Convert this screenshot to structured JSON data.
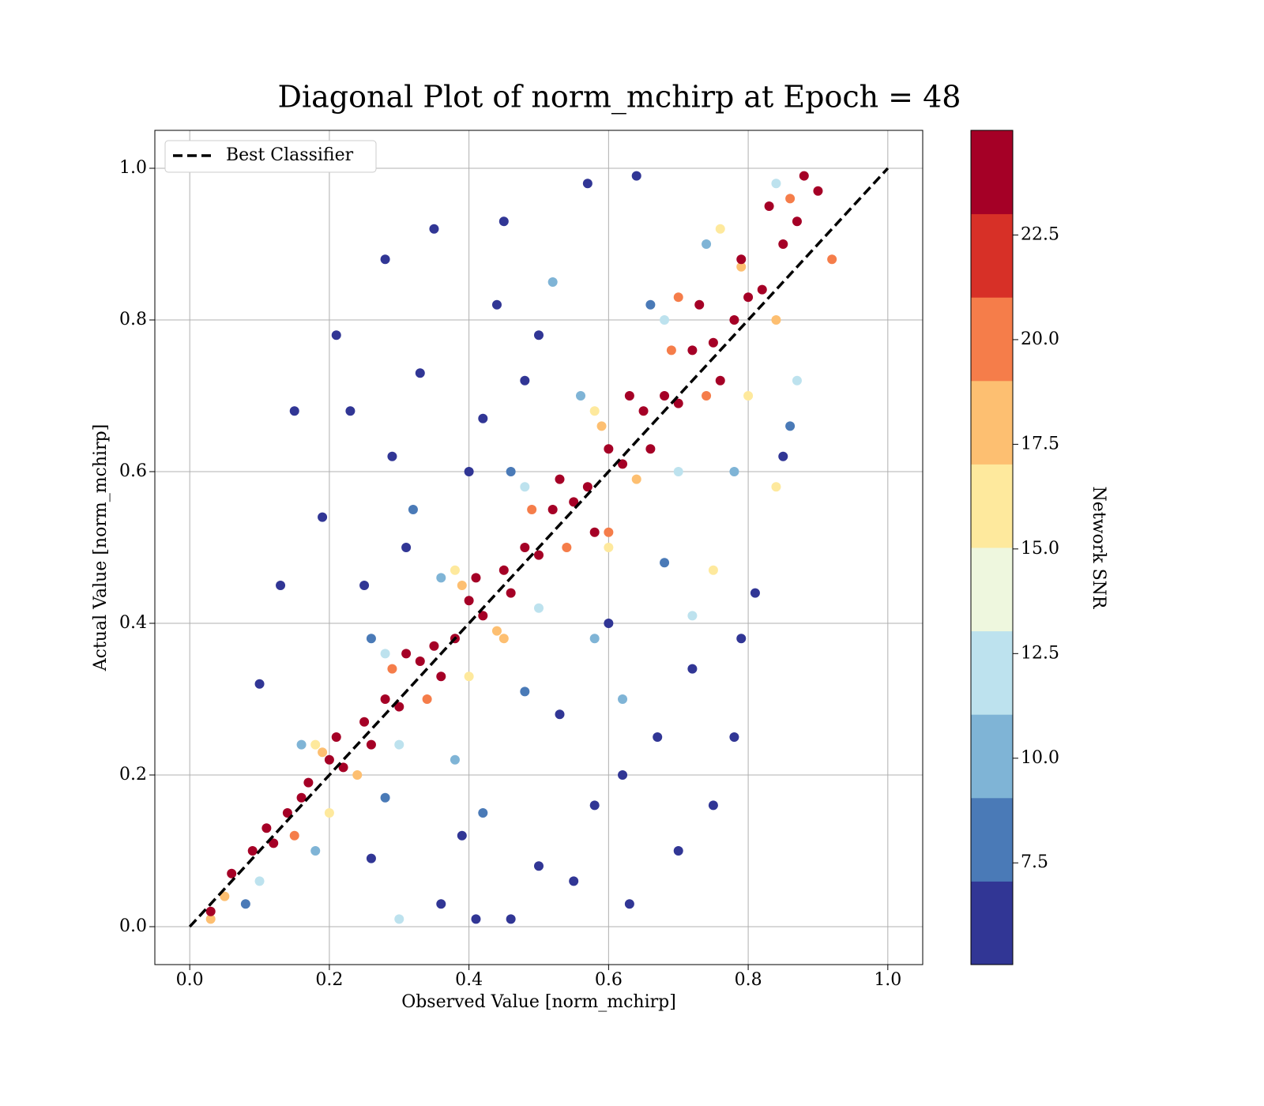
{
  "chart_data": {
    "type": "scatter",
    "title": "Diagonal Plot of norm_mchirp at Epoch = 48",
    "xlabel": "Observed Value [norm_mchirp]",
    "ylabel": "Actual Value [norm_mchirp]",
    "colorbar_label": "Network SNR",
    "xlim": [
      -0.05,
      1.05
    ],
    "ylim": [
      -0.05,
      1.05
    ],
    "xticks": [
      {
        "value": 0,
        "label": "0.0"
      },
      0.2,
      0.4,
      0.6,
      0.8,
      {
        "value": 1,
        "label": "1.0"
      }
    ],
    "yticks": [
      {
        "value": 0,
        "label": "0.0"
      },
      0.2,
      0.4,
      0.6,
      0.8,
      {
        "value": 1,
        "label": "1.0"
      }
    ],
    "grid": true,
    "legend": "upper left",
    "clim": [
      5.07,
      25
    ],
    "cticks": [
      7.5,
      {
        "value": 10,
        "label": "10.0"
      },
      12.5,
      {
        "value": 15,
        "label": "15.0"
      },
      17.5,
      {
        "value": 20,
        "label": "20.0"
      },
      22.5
    ],
    "colormap": [
      "#313695",
      "#4a7ab7",
      "#7fb4d6",
      "#bde2ee",
      "#eef7de",
      "#fee99d",
      "#fdbf71",
      "#f57d4a",
      "#d73027",
      "#a50026"
    ],
    "lines": [
      {
        "name": "Best Classifier",
        "x": [
          0,
          1
        ],
        "y": [
          0,
          1
        ],
        "color": "#000000"
      }
    ],
    "points": {
      "x": [
        0.15,
        0.21,
        0.28,
        0.35,
        0.4,
        0.45,
        0.57,
        0.64,
        0.1,
        0.19,
        0.25,
        0.33,
        0.55,
        0.46,
        0.41,
        0.63,
        0.7,
        0.75,
        0.79,
        0.81,
        0.85,
        0.62,
        0.5,
        0.36,
        0.23,
        0.29,
        0.44,
        0.53,
        0.67,
        0.72,
        0.39,
        0.58,
        0.13,
        0.31,
        0.48,
        0.6,
        0.26,
        0.78,
        0.5,
        0.42,
        0.08,
        0.18,
        0.28,
        0.38,
        0.48,
        0.58,
        0.68,
        0.78,
        0.86,
        0.16,
        0.26,
        0.36,
        0.46,
        0.56,
        0.66,
        0.74,
        0.42,
        0.62,
        0.32,
        0.52,
        0.1,
        0.2,
        0.3,
        0.4,
        0.5,
        0.6,
        0.7,
        0.8,
        0.87,
        0.18,
        0.28,
        0.38,
        0.48,
        0.58,
        0.68,
        0.76,
        0.84,
        0.75,
        0.3,
        0.84,
        0.72,
        0.05,
        0.15,
        0.24,
        0.34,
        0.44,
        0.54,
        0.64,
        0.74,
        0.84,
        0.92,
        0.19,
        0.29,
        0.39,
        0.49,
        0.59,
        0.69,
        0.79,
        0.86,
        0.03,
        0.6,
        0.45,
        0.7,
        0.03,
        0.06,
        0.09,
        0.11,
        0.14,
        0.17,
        0.2,
        0.22,
        0.25,
        0.28,
        0.3,
        0.33,
        0.35,
        0.38,
        0.4,
        0.42,
        0.45,
        0.48,
        0.5,
        0.52,
        0.55,
        0.57,
        0.6,
        0.62,
        0.65,
        0.68,
        0.7,
        0.72,
        0.75,
        0.78,
        0.8,
        0.82,
        0.85,
        0.87,
        0.9,
        0.88,
        0.83,
        0.79,
        0.76,
        0.66,
        0.58,
        0.46,
        0.36,
        0.26,
        0.16,
        0.12,
        0.53,
        0.63,
        0.73,
        0.41,
        0.31,
        0.21
      ],
      "y": [
        0.68,
        0.78,
        0.88,
        0.92,
        0.6,
        0.93,
        0.98,
        0.99,
        0.32,
        0.54,
        0.45,
        0.73,
        0.06,
        0.01,
        0.01,
        0.03,
        0.1,
        0.16,
        0.38,
        0.44,
        0.62,
        0.2,
        0.08,
        0.03,
        0.68,
        0.62,
        0.82,
        0.28,
        0.25,
        0.34,
        0.12,
        0.16,
        0.45,
        0.5,
        0.72,
        0.4,
        0.09,
        0.25,
        0.78,
        0.67,
        0.03,
        0.1,
        0.17,
        0.22,
        0.31,
        0.38,
        0.48,
        0.6,
        0.66,
        0.24,
        0.38,
        0.46,
        0.6,
        0.7,
        0.82,
        0.9,
        0.15,
        0.3,
        0.55,
        0.85,
        0.06,
        0.15,
        0.24,
        0.33,
        0.42,
        0.5,
        0.6,
        0.7,
        0.72,
        0.24,
        0.36,
        0.47,
        0.58,
        0.68,
        0.8,
        0.92,
        0.98,
        0.47,
        0.01,
        0.58,
        0.41,
        0.04,
        0.12,
        0.2,
        0.3,
        0.39,
        0.5,
        0.59,
        0.7,
        0.8,
        0.88,
        0.23,
        0.34,
        0.45,
        0.55,
        0.66,
        0.76,
        0.87,
        0.96,
        0.01,
        0.52,
        0.38,
        0.83,
        0.02,
        0.07,
        0.1,
        0.13,
        0.15,
        0.19,
        0.22,
        0.21,
        0.27,
        0.3,
        0.29,
        0.35,
        0.37,
        0.38,
        0.43,
        0.41,
        0.47,
        0.5,
        0.49,
        0.55,
        0.56,
        0.58,
        0.63,
        0.61,
        0.68,
        0.7,
        0.69,
        0.76,
        0.77,
        0.8,
        0.83,
        0.84,
        0.9,
        0.93,
        0.97,
        0.99,
        0.95,
        0.88,
        0.72,
        0.63,
        0.52,
        0.44,
        0.33,
        0.24,
        0.17,
        0.11,
        0.59,
        0.7,
        0.82,
        0.46,
        0.36,
        0.25
      ],
      "snr": [
        6,
        6,
        6,
        6,
        6,
        6,
        6,
        6,
        6,
        6,
        6,
        6,
        6,
        6,
        6,
        6,
        6,
        6,
        6,
        6,
        6,
        6,
        6,
        6,
        6,
        6,
        6,
        6,
        6,
        6,
        6,
        6,
        6,
        6,
        6,
        6,
        6,
        6,
        6,
        6,
        8,
        10,
        8,
        10,
        8,
        10,
        8,
        10,
        8,
        10,
        8,
        10,
        8,
        10,
        8,
        10,
        8,
        10,
        8,
        10,
        12,
        16,
        12,
        16,
        12,
        16,
        12,
        16,
        12,
        16,
        12,
        16,
        12,
        16,
        12,
        16,
        12,
        16,
        12,
        16,
        12,
        19,
        21,
        19,
        21,
        19,
        21,
        19,
        21,
        19,
        21,
        19,
        21,
        19,
        21,
        19,
        21,
        19,
        21,
        19,
        21,
        19,
        21,
        24,
        24,
        24,
        24,
        24,
        24,
        24,
        24,
        24,
        24,
        24,
        24,
        24,
        24,
        24,
        24,
        24,
        24,
        24,
        24,
        24,
        24,
        24,
        24,
        24,
        24,
        24,
        24,
        24,
        24,
        24,
        24,
        24,
        24,
        24,
        24,
        24,
        24,
        24,
        24,
        24,
        24,
        24,
        24,
        24,
        24,
        24,
        24,
        24,
        24,
        24,
        24
      ]
    }
  }
}
